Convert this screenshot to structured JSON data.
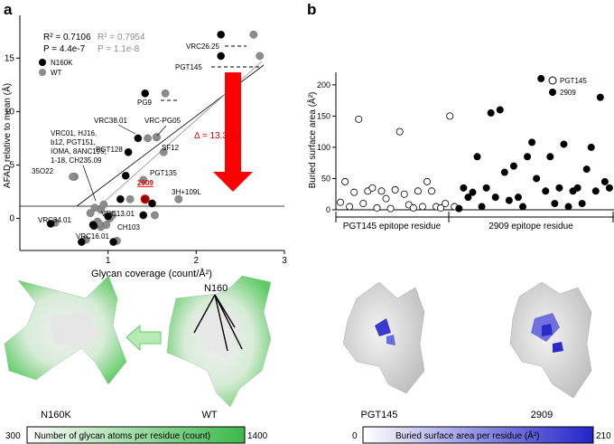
{
  "panel_a_letter": "a",
  "panel_b_letter": "b",
  "chart_data": [
    {
      "type": "scatter",
      "id": "panel-a",
      "xlabel": "Glycan coverage (count/Å²)",
      "ylabel": "AFAD relative to mean (Å)",
      "xlim": [
        0,
        3
      ],
      "ylim": [
        -3,
        19
      ],
      "xticks": [
        "1",
        "2",
        "3"
      ],
      "yticks": [
        "0",
        "5",
        "10",
        "15"
      ],
      "stats": {
        "n160k": {
          "r2": "R² = 0.7106",
          "p": "P = 4.4e-7"
        },
        "wt": {
          "r2": "R² = 0.7954",
          "p": "P = 1.1e-8"
        }
      },
      "legend": [
        "N160K",
        "WT"
      ],
      "series": [
        {
          "name": "N160K",
          "color": "#000000",
          "x": [
            0.35,
            0.7,
            2.28,
            2.28,
            1.42,
            1.34,
            1.23,
            1.2,
            1.14,
            1.5,
            1.4,
            1.06,
            0.84,
            0.83,
            1.0
          ],
          "y": [
            -0.5,
            -2.2,
            15.2,
            17.2,
            11.7,
            7.5,
            6.2,
            4.0,
            1.8,
            1.4,
            0.3,
            -2.2,
            -0.7,
            -0.6,
            0.2
          ]
        },
        {
          "name": "WT",
          "color": "#8c8c8c",
          "x": [
            0.4,
            0.75,
            2.72,
            2.65,
            1.65,
            1.55,
            1.63,
            1.4,
            1.25,
            1.8,
            1.53,
            1.1,
            0.92,
            0.9,
            1.05
          ],
          "y": [
            -0.4,
            -2.0,
            15.2,
            17.2,
            11.7,
            7.6,
            6.2,
            3.6,
            1.8,
            1.8,
            0.3,
            -2.1,
            -0.8,
            -0.5,
            0.3
          ]
        },
        {
          "name": "other",
          "color": "#8c8c8c",
          "x": [
            0.8,
            0.85,
            0.88,
            0.92,
            0.95,
            0.98,
            1.02,
            0.62,
            0.6,
            1.45,
            1.55
          ],
          "y": [
            0.5,
            1.0,
            -0.3,
            0.8,
            1.3,
            -0.6,
            0.0,
            3.9,
            3.9,
            7.5,
            7.6
          ]
        }
      ],
      "point_labels": [
        "VRC26.25",
        "PGT145",
        "PG9",
        "VRC38.01",
        "VRC-PG05",
        "PGT128",
        "SF12",
        "PGT135",
        "2909",
        "3H+109L",
        "VRC13.01",
        "CH103",
        "VRC16.01",
        "VRC34.01",
        "35O22",
        "VRC01, HJ16,",
        "b12, PGT151,",
        "IOMA, 8ANC195,",
        "1-18, CH235.09"
      ],
      "delta_label": "Δ = 13.3 Å"
    },
    {
      "type": "scatter",
      "id": "panel-b",
      "ylabel": "Buried surface area (Å²)",
      "ylim": [
        0,
        220
      ],
      "yticks": [
        "0",
        "50",
        "100",
        "150",
        "200"
      ],
      "legend": [
        "PGT145",
        "2909"
      ],
      "groups": [
        "PGT145 epitope residue",
        "2909 epitope residue"
      ],
      "series": [
        {
          "name": "PGT145",
          "fill": "none",
          "x": [
            1,
            2,
            3,
            4,
            5,
            6,
            7,
            8,
            9,
            10,
            11,
            12,
            13,
            14,
            15,
            16,
            17,
            18,
            19,
            20,
            21,
            22,
            23,
            24,
            25,
            26
          ],
          "y": [
            12,
            45,
            5,
            28,
            145,
            10,
            30,
            35,
            3,
            30,
            18,
            2,
            32,
            125,
            25,
            8,
            3,
            30,
            5,
            45,
            30,
            5,
            3,
            10,
            150,
            5
          ]
        },
        {
          "name": "2909",
          "fill": "#000000",
          "x": [
            27,
            28,
            29,
            30,
            31,
            32,
            33,
            34,
            35,
            36,
            37,
            38,
            39,
            40,
            41,
            42,
            43,
            44,
            45,
            46,
            47,
            48,
            49,
            50,
            51,
            52,
            53,
            54,
            55,
            56,
            57,
            58,
            59,
            60
          ],
          "y": [
            2,
            35,
            20,
            28,
            85,
            5,
            35,
            155,
            20,
            160,
            60,
            15,
            70,
            20,
            5,
            85,
            108,
            50,
            210,
            30,
            85,
            10,
            35,
            105,
            5,
            30,
            35,
            10,
            65,
            100,
            30,
            180,
            45,
            35
          ]
        }
      ]
    }
  ],
  "structures": {
    "n160_label": "N160",
    "n160k_caption": "N160K",
    "wt_caption": "WT",
    "pgt145_caption": "PGT145",
    "caption_2909": "2909"
  },
  "colorbars": {
    "left": {
      "min": "300",
      "max": "1400",
      "label": "Number of glycan atoms per residue (count)",
      "color_high": "#3cb84a"
    },
    "right": {
      "min": "0",
      "max": "210",
      "label": "Buried surface area per residue (Å²)",
      "color_high": "#2323c8"
    }
  }
}
